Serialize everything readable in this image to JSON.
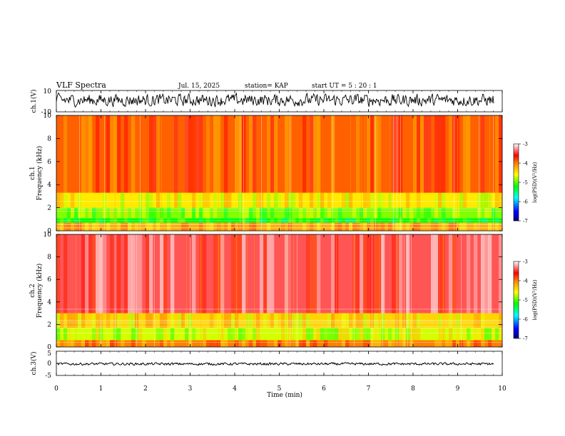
{
  "header": {
    "title": "VLF Spectra",
    "date": "Jul. 15, 2025",
    "station": "station= KAP",
    "start_ut": "start UT =  5 : 20 : 1"
  },
  "chart_data": [
    {
      "panel": "ch1-waveform",
      "type": "line",
      "ylabel": "ch.1(V)",
      "ylim": [
        -10,
        10
      ],
      "yticks": [
        "10",
        "-10"
      ],
      "xlim": [
        0,
        10
      ],
      "approx_range_values": [
        -4,
        6
      ],
      "description": "noisy waveform roughly between -4 V and 6 V"
    },
    {
      "panel": "ch1-spectrogram",
      "type": "heatmap",
      "ylabel_line1": "ch.1",
      "ylabel_line2": "Frequency (kHz)",
      "ylim": [
        0,
        10
      ],
      "yticks": [
        "0",
        "2",
        "4",
        "6",
        "8",
        "10"
      ],
      "xlim": [
        0,
        10
      ],
      "colorbar": {
        "label": "log(PSD)(V²/Hz)",
        "range": [
          -7,
          -3
        ],
        "ticks": [
          "-3",
          "-4",
          "-5",
          "-6",
          "-7"
        ]
      },
      "bands_khz": [
        {
          "from": 0,
          "to": 0.7,
          "level": -4.2
        },
        {
          "from": 0.7,
          "to": 1.1,
          "level": -5.2
        },
        {
          "from": 1.1,
          "to": 2.0,
          "level": -4.9
        },
        {
          "from": 2.0,
          "to": 3.3,
          "level": -4.5
        },
        {
          "from": 3.3,
          "to": 10,
          "level": -3.9
        }
      ]
    },
    {
      "panel": "ch2-spectrogram",
      "type": "heatmap",
      "ylabel_line1": "ch.2",
      "ylabel_line2": "Frequency (kHz)",
      "ylim": [
        0,
        10
      ],
      "yticks": [
        "0",
        "2",
        "4",
        "6",
        "8",
        "10"
      ],
      "xlim": [
        0,
        10
      ],
      "colorbar": {
        "label": "log(PSD)(V²/Hz)",
        "range": [
          -7,
          -3
        ],
        "ticks": [
          "-3",
          "-4",
          "-5",
          "-6",
          "-7"
        ]
      },
      "bands_khz": [
        {
          "from": 0,
          "to": 0.6,
          "level": -4.0
        },
        {
          "from": 0.6,
          "to": 1.7,
          "level": -4.7
        },
        {
          "from": 1.7,
          "to": 3.0,
          "level": -4.4
        },
        {
          "from": 3.0,
          "to": 10,
          "level": -3.4
        }
      ]
    },
    {
      "panel": "ch3-waveform",
      "type": "line",
      "ylabel": "ch.3(V)",
      "ylim": [
        -5,
        5
      ],
      "yticks": [
        "5",
        "0",
        "-5"
      ],
      "xlim": [
        0,
        10
      ],
      "approx_range_values": [
        -0.7,
        0.2
      ],
      "xlabel": "Time (min)",
      "xticks": [
        "0",
        "1",
        "2",
        "3",
        "4",
        "5",
        "6",
        "7",
        "8",
        "9",
        "10"
      ],
      "description": "near-flat signal around -0.3 V"
    }
  ]
}
